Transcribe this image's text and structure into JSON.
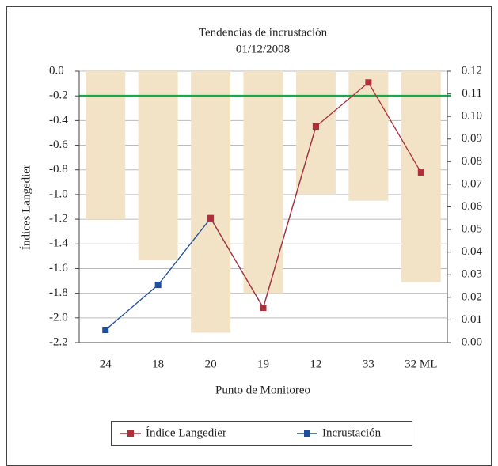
{
  "chart_data": {
    "type": "bar-line",
    "title": "Tendencias de incrustación",
    "subtitle": "01/12/2008",
    "x_label": "Punto de Monitoreo",
    "y_label": "Índices Langedier",
    "categories": [
      "24",
      "18",
      "20",
      "19",
      "12",
      "33",
      "32 ML"
    ],
    "bars": {
      "color": "#f2e3c6",
      "values": [
        -1.2,
        -1.53,
        -2.12,
        -1.8,
        -1.0,
        -1.05,
        -1.71
      ]
    },
    "reference_line": {
      "value": -0.2,
      "color": "#1aa64a"
    },
    "series": [
      {
        "name": "Incrustación",
        "color": "#1f4e9b",
        "axis": "y2",
        "values": [
          0.0056,
          0.0255,
          0.055,
          0.0154,
          0.0955,
          null,
          null
        ]
      },
      {
        "name": "Índice Langedier",
        "color": "#b0303a",
        "axis": "y2",
        "values": [
          null,
          null,
          0.055,
          0.0154,
          0.0955,
          0.115,
          0.0752
        ]
      }
    ],
    "legend_order": [
      1,
      0
    ],
    "ylim": [
      -2.2,
      0
    ],
    "yticks": [
      {
        "value": 0,
        "label": "0.0"
      },
      -0.2,
      -0.4,
      -0.6,
      -0.8,
      {
        "value": -1,
        "label": "-1.0"
      },
      -1.2,
      -1.4,
      -1.6,
      -1.8,
      {
        "value": -2,
        "label": "-2.0"
      },
      -2.2
    ],
    "y2lim": [
      0,
      0.12
    ],
    "y2ticks": [
      {
        "value": 0,
        "label": "0.00"
      },
      0.01,
      0.02,
      0.03,
      0.04,
      0.05,
      0.06,
      0.07,
      0.08,
      0.09,
      {
        "value": 0.1,
        "label": "0.10"
      },
      0.11,
      0.12
    ],
    "grid": true
  }
}
